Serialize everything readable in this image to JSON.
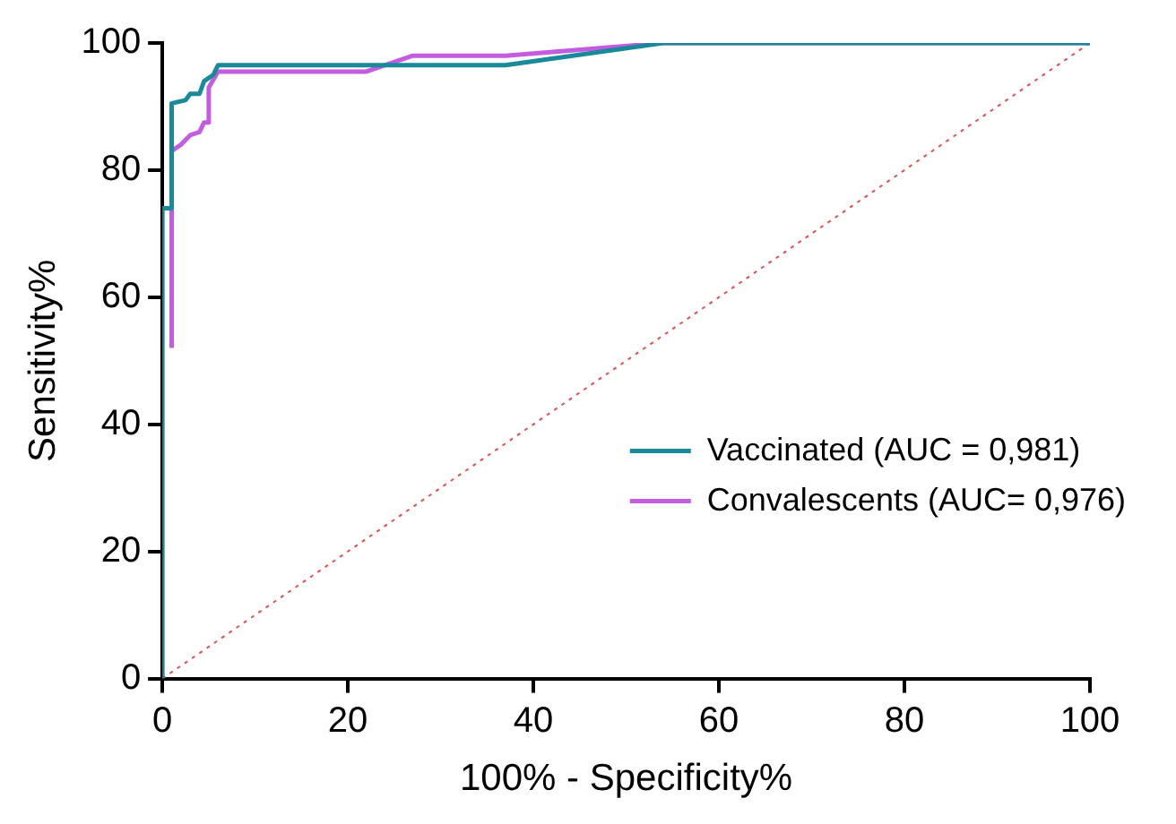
{
  "chart_data": {
    "type": "line",
    "xlabel": "100% - Specificity%",
    "ylabel": "Sensitivity%",
    "xlim": [
      0,
      100
    ],
    "ylim": [
      0,
      100
    ],
    "xticks": [
      0,
      20,
      40,
      60,
      80,
      100
    ],
    "yticks": [
      0,
      20,
      40,
      60,
      80,
      100
    ],
    "grid": false,
    "legend": "bottom right",
    "marker": "none",
    "series": [
      {
        "name": "Vaccinated (AUC = 0,981)",
        "color": "#1a8a9a",
        "x": [
          0,
          0,
          1,
          1,
          2.5,
          3,
          4,
          4.5,
          5.5,
          6,
          37,
          54,
          100
        ],
        "values": [
          0,
          74,
          74,
          90.5,
          91,
          92,
          92,
          94,
          95,
          96.5,
          96.5,
          100,
          100
        ]
      },
      {
        "name": "Convalescents (AUC= 0,976)",
        "color": "#c45ce0",
        "x": [
          1,
          1,
          2,
          3,
          4,
          4.5,
          5,
          5,
          6,
          22,
          27,
          37,
          54,
          100
        ],
        "values": [
          52,
          83,
          84,
          85.5,
          86,
          87.5,
          87.5,
          93,
          95.5,
          95.5,
          98,
          98,
          100,
          100
        ]
      },
      {
        "type": "line",
        "color": "#e05050",
        "line_style": "dotted",
        "x": [
          0,
          100
        ],
        "values": [
          0,
          100
        ]
      }
    ]
  }
}
